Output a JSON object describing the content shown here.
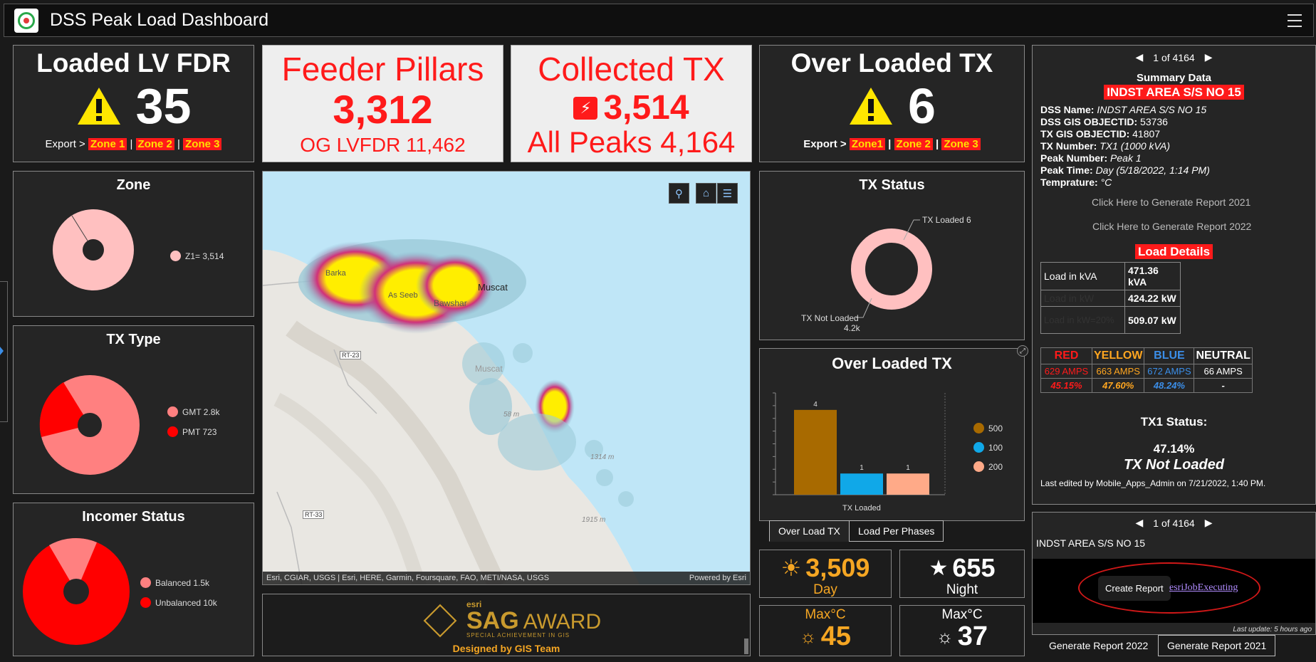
{
  "app": {
    "title": "DSS Peak Load Dashboard"
  },
  "kpis": {
    "loaded_lv_fdr": {
      "title": "Loaded LV FDR",
      "value": "35",
      "export_label": "Export >",
      "zones": [
        "Zone 1",
        "Zone 2",
        "Zone 3"
      ]
    },
    "feeder_pillars": {
      "title": "Feeder Pillars",
      "value": "3,312",
      "sub": "OG LVFDR 11,462"
    },
    "collected_tx": {
      "title": "Collected TX",
      "value": "3,514",
      "sub": "All Peaks 4,164"
    },
    "over_loaded_tx": {
      "title": "Over Loaded TX",
      "value": "6",
      "export_label": "Export >",
      "zones": [
        "Zone1",
        "Zone 2",
        "Zone 3"
      ]
    }
  },
  "zone_chart": {
    "title": "Zone",
    "legend": [
      {
        "label": "Z1= 3,514",
        "color": "#ffc0c0"
      }
    ]
  },
  "tx_type_chart": {
    "title": "TX Type",
    "legend": [
      {
        "label": "GMT  2.8k",
        "color": "#ff8080"
      },
      {
        "label": "PMT  723",
        "color": "#ff0000"
      }
    ]
  },
  "incomer_chart": {
    "title": "Incomer Status",
    "legend": [
      {
        "label": "Balanced  1.5k",
        "color": "#ff8080"
      },
      {
        "label": "Unbalanced  10k",
        "color": "#ff0000"
      }
    ]
  },
  "tx_status_chart": {
    "title": "TX Status",
    "label_loaded": "TX Loaded 6",
    "label_not_loaded": "TX Not Loaded",
    "label_not_loaded_val": "4.2k"
  },
  "chart_data": {
    "type": "bar",
    "title": "Over Loaded TX",
    "categories": [
      "TX Loaded"
    ],
    "xlabel": "TX Loaded",
    "series": [
      {
        "name": "500",
        "values": [
          4
        ],
        "color": "#a86a00"
      },
      {
        "name": "100",
        "values": [
          1
        ],
        "color": "#10a8e8"
      },
      {
        "name": "200",
        "values": [
          1
        ],
        "color": "#ffaa88"
      }
    ],
    "ylim": [
      0,
      4.8
    ]
  },
  "over_loaded_tabs": [
    "Over Load TX",
    "Load Per Phases"
  ],
  "map": {
    "labels": {
      "muscat": "Muscat",
      "muscat2": "Muscat",
      "as_seeb": "As Seeb",
      "bawshar": "Bawshar",
      "barka": "Barka",
      "rt23": "RT-23",
      "rt33": "RT-33",
      "elev1": "1314 m",
      "elev2": "1915 m",
      "elev3": "58 m"
    },
    "attribution": "Esri, CGIAR, USGS | Esri, HERE, Garmin, Foursquare, FAO, METI/NASA, USGS",
    "powered": "Powered by Esri"
  },
  "award": {
    "esri": "esri",
    "sag": "SAG",
    "award": "AWARD",
    "special": "SPECIAL ACHIEVEMENT IN GIS",
    "designed": "Designed by GIS Team"
  },
  "stats": {
    "day_value": "3,509",
    "day_label": "Day",
    "night_value": "655",
    "night_label": "Night",
    "max1_label": "Max°C",
    "max1_value": "45",
    "max2_label": "Max°C",
    "max2_value": "37"
  },
  "summary": {
    "pager": "1 of 4164",
    "heading": "Summary Data",
    "station": "INDST AREA S/S NO 15",
    "lines": [
      {
        "k": "DSS Name:",
        "v": "INDST AREA S/S NO 15",
        "italic": true
      },
      {
        "k": "DSS GIS OBJECTID:",
        "v": "53736",
        "italic": false
      },
      {
        "k": "TX GIS OBJECTID:",
        "v": "41807",
        "italic": false
      },
      {
        "k": "TX Number:",
        "v": "TX1 (1000 kVA)",
        "italic": true
      },
      {
        "k": "Peak Number:",
        "v": "Peak 1",
        "italic": true
      },
      {
        "k": "Peak Time:",
        "v": "Day (5/18/2022, 1:14 PM)",
        "italic": true
      },
      {
        "k": "Temprature:",
        "v": "°C",
        "italic": true
      }
    ],
    "report_2021": "Click Here to Generate Report  2021",
    "report_2022": "Click Here to Generate Report  2022",
    "load_details": "Load Details",
    "load_rows": [
      {
        "k": "Load in kVA",
        "v": "471.36 kVA"
      },
      {
        "k": "Load in kW",
        "v": "424.22 kW"
      },
      {
        "k": "Load in kW=20%",
        "v": "509.07 kW"
      }
    ],
    "amps_headers": [
      "RED",
      "YELLOW",
      "BLUE",
      "NEUTRAL"
    ],
    "amps_values": [
      "629 AMPS",
      "663 AMPS",
      "672 AMPS",
      "66 AMPS"
    ],
    "amps_pct": [
      "45.15%",
      "47.60%",
      "48.24%",
      "-"
    ],
    "tx_status_title": "TX1 Status:",
    "tx_status_pct": "47.14%",
    "tx_status_text": "TX Not Loaded",
    "last_edited": "Last edited by Mobile_Apps_Admin on 7/21/2022, 1:40 PM."
  },
  "report_panel": {
    "pager": "1 of 4164",
    "station": "INDST AREA S/S NO 15",
    "create_btn": "Create Report",
    "job_link": "esriJobExecuting",
    "last_update": "Last update: 5 hours ago",
    "tabs": [
      "Generate Report 2022",
      "Generate Report 2021"
    ]
  }
}
